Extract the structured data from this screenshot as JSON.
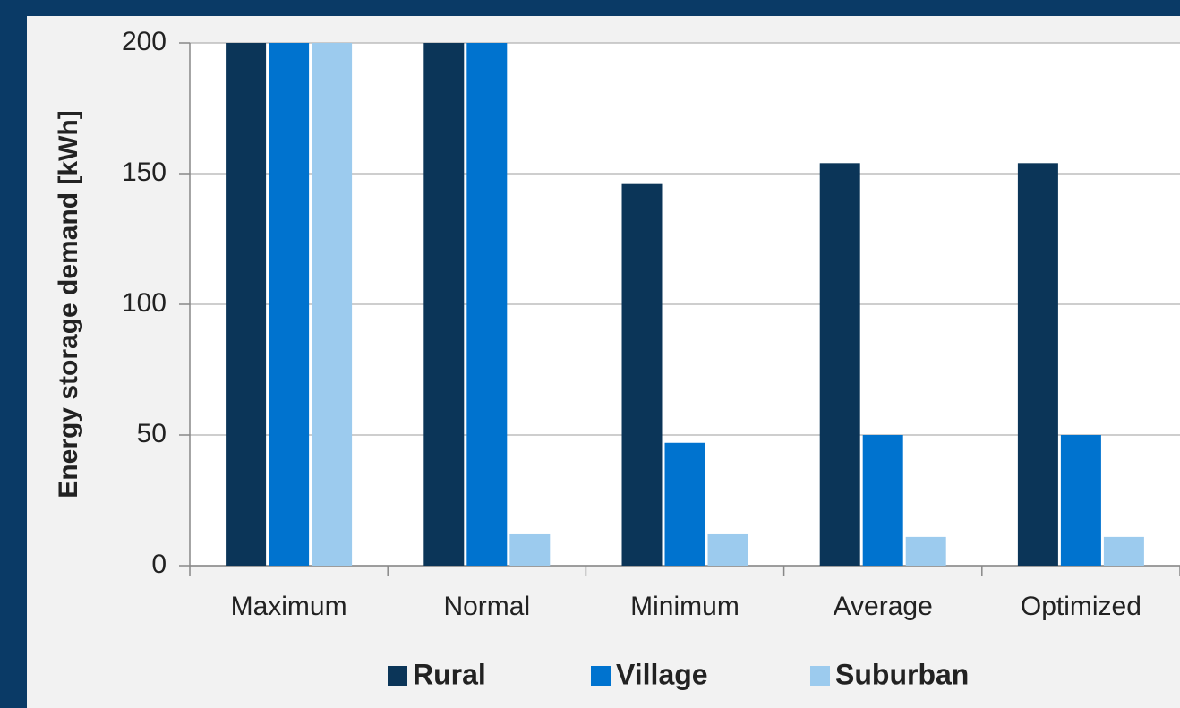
{
  "chart_data": {
    "type": "bar",
    "ylabel": "Energy storage demand  [kWh]",
    "categories": [
      "Maximum",
      "Normal",
      "Minimum",
      "Average",
      "Optimized"
    ],
    "series": [
      {
        "name": "Rural",
        "color": "#0b3558",
        "values": [
          200,
          200,
          146,
          154,
          154
        ]
      },
      {
        "name": "Village",
        "color": "#0073cf",
        "values": [
          200,
          200,
          47,
          50,
          50
        ]
      },
      {
        "name": "Suburban",
        "color": "#9ccbee",
        "values": [
          200,
          12,
          12,
          11,
          11
        ]
      }
    ],
    "ylim": [
      0,
      200
    ],
    "yticks": [
      0,
      50,
      100,
      150,
      200
    ],
    "grid": true,
    "legend": "bottom"
  }
}
